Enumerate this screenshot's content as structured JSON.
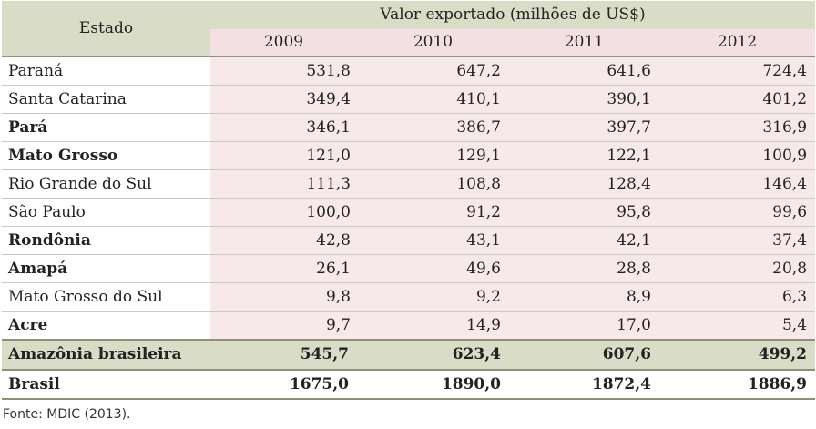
{
  "table": {
    "header": {
      "estado_label": "Estado",
      "group_label": "Valor exportado (milhões de US$)",
      "years": [
        "2009",
        "2010",
        "2011",
        "2012"
      ]
    },
    "rows": [
      {
        "name": "Paraná",
        "bold": false,
        "values": [
          "531,8",
          "647,2",
          "641,6",
          "724,4"
        ]
      },
      {
        "name": "Santa Catarina",
        "bold": false,
        "values": [
          "349,4",
          "410,1",
          "390,1",
          "401,2"
        ]
      },
      {
        "name": "Pará",
        "bold": true,
        "values": [
          "346,1",
          "386,7",
          "397,7",
          "316,9"
        ]
      },
      {
        "name": "Mato Grosso",
        "bold": true,
        "values": [
          "121,0",
          "129,1",
          "122,1",
          "100,9"
        ]
      },
      {
        "name": "Rio Grande do Sul",
        "bold": false,
        "values": [
          "111,3",
          "108,8",
          "128,4",
          "146,4"
        ]
      },
      {
        "name": "São Paulo",
        "bold": false,
        "values": [
          "100,0",
          "91,2",
          "95,8",
          "99,6"
        ]
      },
      {
        "name": "Rondônia",
        "bold": true,
        "values": [
          "42,8",
          "43,1",
          "42,1",
          "37,4"
        ]
      },
      {
        "name": "Amapá",
        "bold": true,
        "values": [
          "26,1",
          "49,6",
          "28,8",
          "20,8"
        ]
      },
      {
        "name": "Mato Grosso do Sul",
        "bold": false,
        "values": [
          "9,8",
          "9,2",
          "8,9",
          "6,3"
        ]
      },
      {
        "name": "Acre",
        "bold": true,
        "values": [
          "9,7",
          "14,9",
          "17,0",
          "5,4"
        ]
      }
    ],
    "total_amazonia": {
      "name": "Amazônia brasileira",
      "values": [
        "545,7",
        "623,4",
        "607,6",
        "499,2"
      ]
    },
    "total_brasil": {
      "name": "Brasil",
      "values": [
        "1675,0",
        "1890,0",
        "1872,4",
        "1886,9"
      ]
    }
  },
  "source": "Fonte: MDIC (2013).",
  "colors": {
    "header_bg": "#d9dcc6",
    "value_bg": "#f7e8ea",
    "year_bg": "#f2e0e2",
    "rule": "#8d9177"
  }
}
